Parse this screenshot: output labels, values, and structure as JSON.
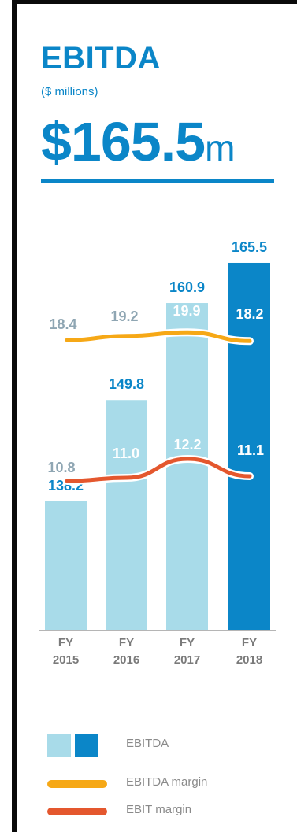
{
  "title": "EBITDA",
  "subtitle": "($ millions)",
  "headline": {
    "value": "$165.5",
    "unit": "m"
  },
  "colors": {
    "ebitda_light": "#a8dbe9",
    "ebitda_highlight": "#0b86c8",
    "ebitda_margin": "#f6a816",
    "ebit_margin": "#e4572e",
    "bar_label": "#0b86c8",
    "margin_label": "#8fa6b3",
    "tick_label": "#7a7a7a"
  },
  "chart_data": {
    "type": "bar",
    "categories": [
      [
        "FY",
        "2015"
      ],
      [
        "FY",
        "2016"
      ],
      [
        "FY",
        "2017"
      ],
      [
        "FY",
        "2018"
      ]
    ],
    "series": [
      {
        "name": "EBITDA",
        "type": "bar",
        "values": [
          138.2,
          149.8,
          160.9,
          165.5
        ],
        "labels": [
          "138.2",
          "149.8",
          "160.9",
          "165.5"
        ],
        "highlight_index": 3
      },
      {
        "name": "EBITDA margin",
        "type": "line",
        "values": [
          18.4,
          19.2,
          19.9,
          18.2
        ],
        "labels": [
          "18.4",
          "19.2",
          "19.9",
          "18.2"
        ]
      },
      {
        "name": "EBIT margin",
        "type": "line",
        "values": [
          10.8,
          11.0,
          12.2,
          11.1
        ],
        "labels": [
          "10.8",
          "11.0",
          "12.2",
          "11.1"
        ]
      }
    ],
    "legend_position": "bottom",
    "grid": false
  },
  "legend": {
    "items": [
      {
        "label": "EBITDA",
        "swatch": "bars"
      },
      {
        "label": "EBITDA margin",
        "swatch": "line-orange"
      },
      {
        "label": "EBIT margin",
        "swatch": "line-red"
      }
    ]
  }
}
